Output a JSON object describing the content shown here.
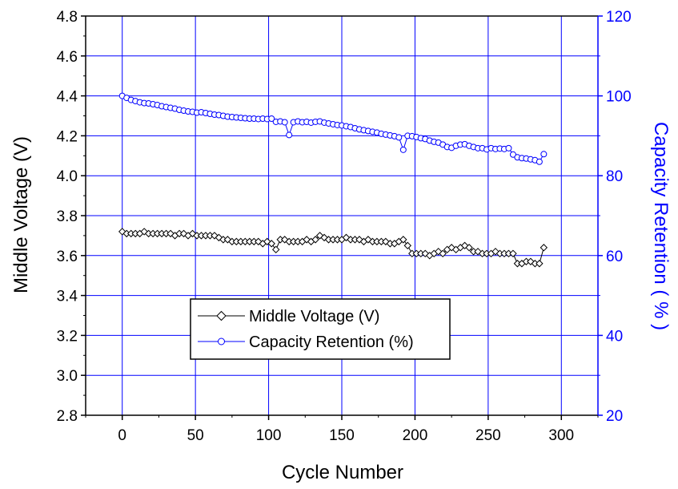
{
  "chart_data": {
    "type": "scatter",
    "xlabel": "Cycle Number",
    "ylabel": "Middle Voltage (V)",
    "y2label": "Capacity Retention ( % )",
    "xlim": [
      -25,
      325
    ],
    "ylim": [
      2.8,
      4.8
    ],
    "y2lim": [
      20,
      120
    ],
    "x_ticks": [
      0,
      50,
      100,
      150,
      200,
      250,
      300
    ],
    "y_ticks": [
      2.8,
      3.0,
      3.2,
      3.4,
      3.6,
      3.8,
      4.0,
      4.2,
      4.4,
      4.6,
      4.8
    ],
    "y_tick_labels": [
      "2.8",
      "3.0",
      "3.2",
      "3.4",
      "3.6",
      "3.8",
      "4.0",
      "4.2",
      "4.4",
      "4.6",
      "4.8"
    ],
    "y2_ticks": [
      20,
      40,
      60,
      80,
      100,
      120
    ],
    "grid": true,
    "legend_position": "bottom-left",
    "colors": {
      "voltage": "#000000",
      "capacity": "#0000ff",
      "grid": "#0000ff"
    },
    "series": [
      {
        "name": "Middle Voltage (V)",
        "axis": "left",
        "marker": "diamond",
        "x": [
          0,
          3,
          6,
          9,
          12,
          15,
          18,
          21,
          24,
          27,
          30,
          33,
          36,
          39,
          42,
          45,
          48,
          51,
          54,
          57,
          60,
          63,
          66,
          69,
          72,
          75,
          78,
          81,
          84,
          87,
          90,
          93,
          96,
          99,
          102,
          105,
          108,
          111,
          114,
          117,
          120,
          123,
          126,
          129,
          132,
          135,
          138,
          141,
          144,
          147,
          150,
          153,
          156,
          159,
          162,
          165,
          168,
          171,
          174,
          177,
          180,
          183,
          186,
          189,
          192,
          195,
          198,
          201,
          204,
          207,
          210,
          213,
          216,
          219,
          222,
          225,
          228,
          231,
          234,
          237,
          240,
          243,
          246,
          249,
          252,
          255,
          258,
          261,
          264,
          267,
          270,
          273,
          276,
          279,
          282,
          285,
          288
        ],
        "y": [
          3.72,
          3.71,
          3.71,
          3.71,
          3.71,
          3.72,
          3.71,
          3.71,
          3.71,
          3.71,
          3.71,
          3.71,
          3.7,
          3.71,
          3.71,
          3.7,
          3.71,
          3.7,
          3.7,
          3.7,
          3.7,
          3.7,
          3.69,
          3.68,
          3.68,
          3.67,
          3.67,
          3.67,
          3.67,
          3.67,
          3.67,
          3.67,
          3.66,
          3.67,
          3.66,
          3.63,
          3.68,
          3.68,
          3.67,
          3.67,
          3.67,
          3.67,
          3.68,
          3.67,
          3.68,
          3.7,
          3.69,
          3.68,
          3.68,
          3.68,
          3.68,
          3.69,
          3.68,
          3.68,
          3.68,
          3.67,
          3.68,
          3.67,
          3.67,
          3.67,
          3.67,
          3.66,
          3.66,
          3.67,
          3.68,
          3.65,
          3.61,
          3.61,
          3.61,
          3.61,
          3.6,
          3.61,
          3.62,
          3.61,
          3.63,
          3.64,
          3.63,
          3.64,
          3.65,
          3.64,
          3.62,
          3.62,
          3.61,
          3.61,
          3.61,
          3.62,
          3.61,
          3.61,
          3.61,
          3.61,
          3.56,
          3.56,
          3.57,
          3.57,
          3.56,
          3.56,
          3.64
        ]
      },
      {
        "name": "Capacity Retention (%)",
        "axis": "right",
        "marker": "circle",
        "x": [
          0,
          3,
          6,
          9,
          12,
          15,
          18,
          21,
          24,
          27,
          30,
          33,
          36,
          39,
          42,
          45,
          48,
          51,
          54,
          57,
          60,
          63,
          66,
          69,
          72,
          75,
          78,
          81,
          84,
          87,
          90,
          93,
          96,
          99,
          102,
          105,
          108,
          111,
          114,
          117,
          120,
          123,
          126,
          129,
          132,
          135,
          138,
          141,
          144,
          147,
          150,
          153,
          156,
          159,
          162,
          165,
          168,
          171,
          174,
          177,
          180,
          183,
          186,
          189,
          192,
          195,
          198,
          201,
          204,
          207,
          210,
          213,
          216,
          219,
          222,
          225,
          228,
          231,
          234,
          237,
          240,
          243,
          246,
          249,
          252,
          255,
          258,
          261,
          264,
          267,
          270,
          273,
          276,
          279,
          282,
          285,
          288
        ],
        "y": [
          100,
          99.5,
          99.0,
          98.7,
          98.4,
          98.2,
          98.1,
          97.9,
          97.7,
          97.4,
          97.2,
          97.0,
          96.8,
          96.5,
          96.3,
          96.1,
          96.0,
          95.8,
          95.9,
          95.7,
          95.5,
          95.3,
          95.2,
          95.0,
          94.8,
          94.7,
          94.6,
          94.5,
          94.4,
          94.3,
          94.3,
          94.2,
          94.3,
          94.2,
          94.3,
          93.5,
          93.6,
          93.4,
          90.2,
          93.4,
          93.6,
          93.4,
          93.5,
          93.3,
          93.5,
          93.6,
          93.3,
          93.1,
          92.9,
          92.7,
          92.6,
          92.4,
          92.2,
          91.9,
          91.6,
          91.4,
          91.2,
          91.0,
          90.8,
          90.5,
          90.3,
          90.1,
          89.9,
          89.6,
          86.5,
          90.0,
          89.9,
          89.7,
          89.4,
          89.2,
          88.8,
          88.5,
          88.3,
          87.8,
          87.2,
          87.0,
          87.5,
          87.8,
          87.9,
          87.5,
          87.2,
          86.9,
          86.9,
          86.6,
          86.9,
          86.7,
          86.8,
          86.7,
          86.9,
          85.3,
          84.6,
          84.4,
          84.3,
          84.1,
          83.9,
          83.5,
          85.4
        ]
      }
    ]
  }
}
